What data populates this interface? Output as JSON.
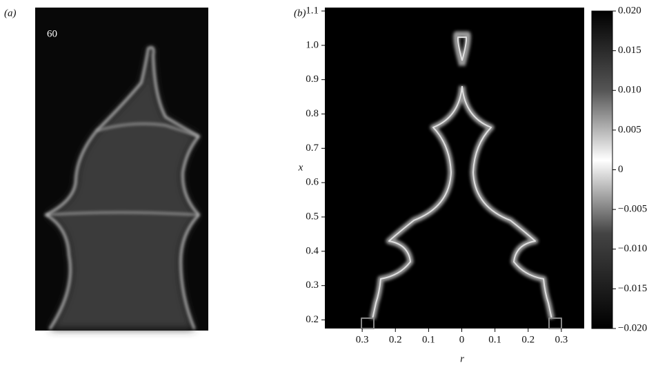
{
  "panel_a": {
    "label": "(a)",
    "frame_label": "60"
  },
  "panel_b": {
    "label": "(b)",
    "xlabel": "r",
    "ylabel": "x",
    "xlim": [
      -0.4125,
      0.3688
    ],
    "xticks": [
      {
        "value": -0.3,
        "label": "0.3"
      },
      {
        "value": -0.2,
        "label": "0.2"
      },
      {
        "value": -0.1,
        "label": "0.1"
      },
      0,
      0.1,
      0.2,
      0.3
    ],
    "ylim": [
      0.175,
      1.11
    ],
    "yticks": [
      {
        "value": 0.2,
        "label": "0.2"
      },
      0.3,
      0.4,
      0.5,
      0.6,
      0.7,
      0.8,
      0.9,
      {
        "value": 1.0,
        "label": "1.0"
      },
      1.1
    ],
    "colorbar_lim": [
      -0.02,
      0.02
    ],
    "colorbar_ticks": [
      {
        "value": -0.02,
        "label": "−0.020"
      },
      {
        "value": -0.015,
        "label": "−0.015"
      },
      {
        "value": -0.01,
        "label": "−0.010"
      },
      {
        "value": -0.005,
        "label": "−0.005"
      },
      0,
      {
        "value": 0.005,
        "label": "0.005"
      },
      {
        "value": 0.01,
        "label": "0.010"
      },
      {
        "value": 0.015,
        "label": "0.015"
      },
      {
        "value": 0.02,
        "label": "0.020"
      }
    ]
  }
}
